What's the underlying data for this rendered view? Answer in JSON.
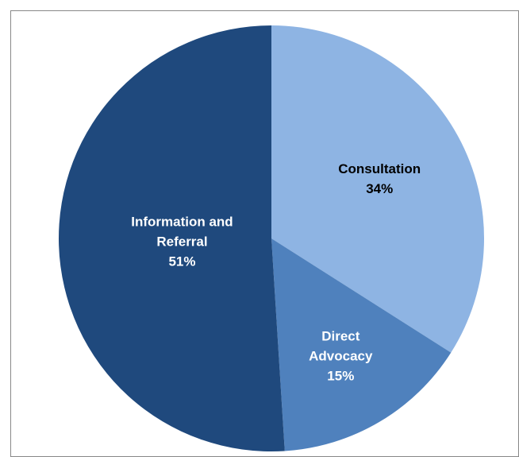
{
  "chart_data": {
    "type": "pie",
    "categories": [
      "Consultation",
      "Direct Advocacy",
      "Information and Referral"
    ],
    "values": [
      34,
      15,
      51
    ],
    "value_labels": [
      "34%",
      "15%",
      "51%"
    ],
    "colors": [
      "#8eb4e3",
      "#4f81bd",
      "#1f497d"
    ],
    "label_colors": [
      "#000000",
      "#ffffff",
      "#ffffff"
    ]
  }
}
